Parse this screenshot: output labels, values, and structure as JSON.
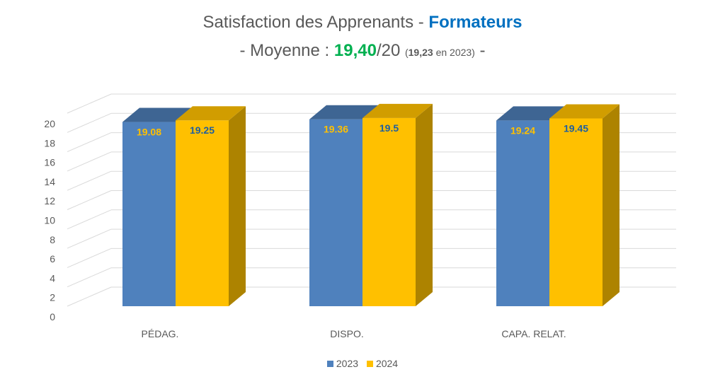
{
  "title": {
    "main": "Satisfaction des Apprenants - ",
    "accent": "Formateurs",
    "line2_prefix": "- Moyenne : ",
    "average": "19,40",
    "average_suffix": "/20 ",
    "prev_open": "(",
    "prev_value": "19,23",
    "prev_text": " en 2023)",
    "line2_end": " -"
  },
  "colors": {
    "series_2023": "#4f81bd",
    "series_2024": "#ffc000",
    "label_2023": "#ffc000",
    "label_2024": "#1f5f9f",
    "title_accent": "#0070c0",
    "average_value": "#00b050"
  },
  "chart_data": {
    "type": "bar",
    "style": "3d-clustered-column",
    "categories": [
      "PÉDAG.",
      "DISPO.",
      "CAPA. RELAT."
    ],
    "series": [
      {
        "name": "2023",
        "values": [
          19.08,
          19.36,
          19.24
        ]
      },
      {
        "name": "2024",
        "values": [
          19.25,
          19.5,
          19.45
        ]
      }
    ],
    "ylim": [
      0,
      20
    ],
    "yticks": [
      0,
      2,
      4,
      6,
      8,
      10,
      12,
      14,
      16,
      18,
      20
    ],
    "grid": true,
    "legend": "bottom-center"
  }
}
